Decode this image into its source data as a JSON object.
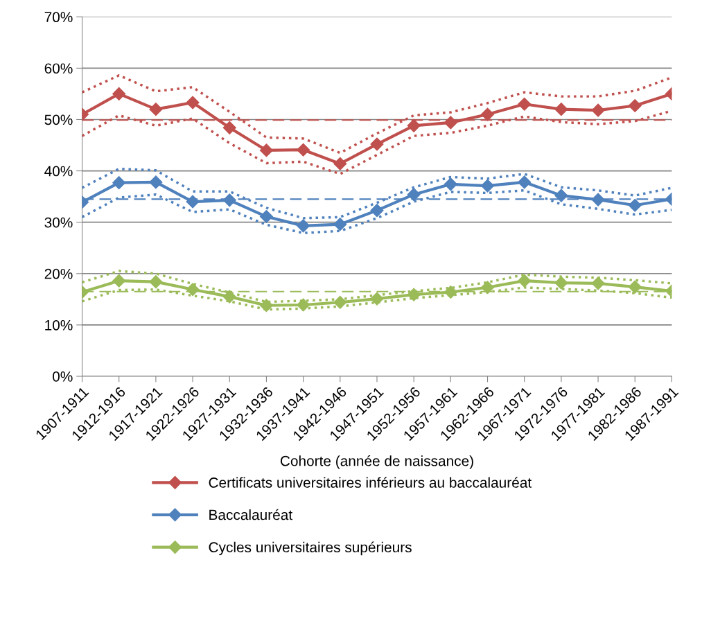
{
  "chart_data": {
    "type": "line",
    "xlabel": "Cohorte (année de naissance)",
    "categories": [
      "1907-1911",
      "1912-1916",
      "1917-1921",
      "1922-1926",
      "1927-1931",
      "1932-1936",
      "1937-1941",
      "1942-1946",
      "1947-1951",
      "1952-1956",
      "1957-1961",
      "1962-1966",
      "1967-1971",
      "1972-1976",
      "1977-1981",
      "1982-1986",
      "1987-1991"
    ],
    "series": [
      {
        "color": "#c0504d",
        "line_style": "dotted",
        "marker": "none",
        "values": [
          55.3,
          58.6,
          55.5,
          56.3,
          51.5,
          46.5,
          46.3,
          43.5,
          47.3,
          50.8,
          51.4,
          53.2,
          55.3,
          54.5,
          54.5,
          55.6,
          58.2
        ]
      },
      {
        "color": "#c0504d",
        "line_style": "dotted",
        "marker": "none",
        "values": [
          46.8,
          50.8,
          48.8,
          50.2,
          45.4,
          41.5,
          41.8,
          39.4,
          43.1,
          46.8,
          47.4,
          48.8,
          50.6,
          49.5,
          49.1,
          49.7,
          51.7
        ]
      },
      {
        "color": "#4f81bd",
        "line_style": "dotted",
        "marker": "none",
        "values": [
          36.7,
          40.4,
          40.1,
          36,
          36,
          32.8,
          30.8,
          31,
          33.8,
          36.8,
          38.8,
          38.5,
          39.4,
          36.8,
          36.2,
          35.2,
          36.7
        ]
      },
      {
        "color": "#4f81bd",
        "line_style": "dotted",
        "marker": "none",
        "values": [
          31,
          34.8,
          35.4,
          32,
          32.5,
          29.5,
          27.9,
          28.3,
          30.8,
          34,
          35.9,
          35.7,
          36.2,
          33.5,
          32.6,
          31.5,
          32.4
        ]
      },
      {
        "color": "#9bbb59",
        "line_style": "dotted",
        "marker": "none",
        "values": [
          18.3,
          20.5,
          20,
          18,
          16.3,
          14.5,
          14.7,
          15,
          15.8,
          16.6,
          17.2,
          18.3,
          19.8,
          19.4,
          19.2,
          18.7,
          18.1
        ]
      },
      {
        "color": "#9bbb59",
        "line_style": "dotted",
        "marker": "none",
        "values": [
          14.6,
          16.8,
          16.9,
          15.7,
          14.6,
          13,
          13.2,
          13.6,
          14.4,
          15.2,
          15.8,
          16.4,
          17.3,
          17,
          16.7,
          16.2,
          15.3
        ]
      },
      {
        "name": "Certificats universitaires inférieurs au baccalauréat",
        "color": "#c0504d",
        "values": [
          51,
          55,
          52,
          53.3,
          48.4,
          44,
          44.1,
          41.4,
          45.2,
          48.8,
          49.4,
          51,
          53,
          52,
          51.8,
          52.7,
          55
        ]
      },
      {
        "name": "Baccalauréat",
        "color": "#4f81bd",
        "values": [
          33.9,
          37.7,
          37.8,
          34,
          34.3,
          31.1,
          29.3,
          29.6,
          32.3,
          35.4,
          37.4,
          37.1,
          37.8,
          35.2,
          34.4,
          33.3,
          34.5
        ]
      },
      {
        "name": "Cycles universitaires supérieurs",
        "color": "#9bbb59",
        "values": [
          16.4,
          18.6,
          18.4,
          16.9,
          15.5,
          13.8,
          13.9,
          14.4,
          15.1,
          15.9,
          16.4,
          17.3,
          18.6,
          18.2,
          18.1,
          17.4,
          16.6
        ]
      }
    ],
    "ref_lines": [
      {
        "axis": "y",
        "value": 49.9,
        "color": "#c0504d",
        "line_style": "dashed"
      },
      {
        "axis": "y",
        "value": 34.5,
        "color": "#4f81bd",
        "line_style": "dashed"
      },
      {
        "axis": "y",
        "value": 16.5,
        "color": "#9bbb59",
        "line_style": "dashed"
      }
    ],
    "ylim": [
      0,
      70
    ],
    "yticks": [
      {
        "value": 0,
        "label": "0%"
      },
      {
        "value": 10,
        "label": "10%"
      },
      {
        "value": 20,
        "label": "20%"
      },
      {
        "value": 30,
        "label": "30%"
      },
      {
        "value": 40,
        "label": "40%"
      },
      {
        "value": 50,
        "label": "50%"
      },
      {
        "value": 60,
        "label": "60%"
      },
      {
        "value": 70,
        "label": "70%"
      }
    ],
    "grid": "y",
    "legend": "bottom",
    "marker": "diamond",
    "line_style": "solid"
  }
}
